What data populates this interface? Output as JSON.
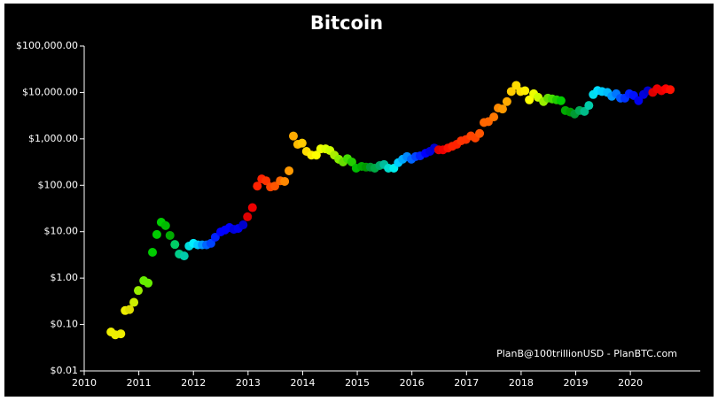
{
  "chart_data": {
    "type": "scatter",
    "title": "Bitcoin",
    "annotation": "PlanB@100trillionUSD - PlanBTC.com",
    "log_y": true,
    "xlim": [
      2010,
      2021.28
    ],
    "xticks": [
      2010,
      2011,
      2012,
      2013,
      2014,
      2015,
      2016,
      2017,
      2018,
      2019,
      2020
    ],
    "ylim": [
      0.01,
      100000
    ],
    "yticks": [
      {
        "value": 0.01,
        "label": "$0.01"
      },
      {
        "value": 0.1,
        "label": "$0.10"
      },
      {
        "value": 1,
        "label": "$1.00"
      },
      {
        "value": 10,
        "label": "$10.00"
      },
      {
        "value": 100,
        "label": "$100.00"
      },
      {
        "value": 1000,
        "label": "$1,000.00"
      },
      {
        "value": 10000,
        "label": "$10,000.00"
      },
      {
        "value": 100000,
        "label": "$100,000.00"
      }
    ],
    "x": [
      2010.49,
      2010.57,
      2010.67,
      2010.75,
      2010.83,
      2010.91,
      2010.99,
      2011.09,
      2011.17,
      2011.25,
      2011.33,
      2011.41,
      2011.49,
      2011.57,
      2011.66,
      2011.74,
      2011.83,
      2011.92,
      2012.0,
      2012.08,
      2012.16,
      2012.24,
      2012.32,
      2012.4,
      2012.5,
      2012.58,
      2012.66,
      2012.74,
      2012.82,
      2012.91,
      2012.99,
      2013.08,
      2013.17,
      2013.25,
      2013.33,
      2013.41,
      2013.49,
      2013.59,
      2013.67,
      2013.75,
      2013.83,
      2013.91,
      2013.99,
      2014.07,
      2014.16,
      2014.25,
      2014.33,
      2014.42,
      2014.5,
      2014.58,
      2014.66,
      2014.74,
      2014.82,
      2014.9,
      2014.98,
      2015.08,
      2015.16,
      2015.24,
      2015.32,
      2015.41,
      2015.49,
      2015.57,
      2015.67,
      2015.75,
      2015.83,
      2015.91,
      2015.99,
      2016.07,
      2016.15,
      2016.25,
      2016.33,
      2016.41,
      2016.49,
      2016.57,
      2016.66,
      2016.74,
      2016.82,
      2016.9,
      2016.99,
      2017.08,
      2017.16,
      2017.24,
      2017.32,
      2017.4,
      2017.5,
      2017.58,
      2017.66,
      2017.74,
      2017.82,
      2017.91,
      2017.99,
      2018.07,
      2018.15,
      2018.23,
      2018.31,
      2018.41,
      2018.49,
      2018.57,
      2018.65,
      2018.73,
      2018.81,
      2018.9,
      2018.98,
      2019.07,
      2019.16,
      2019.24,
      2019.32,
      2019.4,
      2019.48,
      2019.58,
      2019.66,
      2019.74,
      2019.82,
      2019.9,
      2019.98,
      2020.06,
      2020.15,
      2020.24,
      2020.32,
      2020.41,
      2020.49,
      2020.57,
      2020.65,
      2020.73
    ],
    "values": [
      0.069,
      0.06,
      0.063,
      0.2,
      0.21,
      0.3,
      0.54,
      0.88,
      0.78,
      3.6,
      8.7,
      16,
      13.5,
      8.3,
      5.3,
      3.3,
      3.0,
      4.9,
      5.6,
      5.2,
      5.2,
      5.2,
      5.6,
      7.6,
      9.9,
      10.9,
      12.3,
      11.2,
      11.7,
      14,
      20.9,
      33,
      96,
      137,
      125,
      92,
      96,
      125,
      121,
      205,
      1150,
      762,
      810,
      537,
      446,
      446,
      608,
      608,
      560,
      446,
      364,
      318,
      375,
      318,
      233,
      255,
      246,
      246,
      233,
      266,
      280,
      233,
      233,
      307,
      364,
      416,
      364,
      416,
      430,
      490,
      537,
      635,
      580,
      580,
      635,
      693,
      762,
      906,
      968,
      1160,
      1046,
      1308,
      2250,
      2350,
      2960,
      4620,
      4400,
      6360,
      10500,
      14200,
      10500,
      10900,
      6920,
      9380,
      7860,
      6360,
      7550,
      7250,
      6920,
      6640,
      4080,
      3770,
      3440,
      4080,
      3900,
      5240,
      9020,
      11000,
      10500,
      10000,
      8270,
      9380,
      7550,
      7550,
      9380,
      8600,
      6640,
      9020,
      10900,
      10000,
      12000,
      10900,
      12000,
      11500
    ],
    "colors": [
      "#eeee00",
      "#eeee00",
      "#eeee00",
      "#eeee00",
      "#dddd00",
      "#ccee00",
      "#99ee00",
      "#66ee00",
      "#66ee00",
      "#00cc00",
      "#00cc00",
      "#00cc00",
      "#00bb00",
      "#00aa00",
      "#00cc66",
      "#00cc88",
      "#00ccaa",
      "#00dddd",
      "#00eeff",
      "#00ccff",
      "#0099ff",
      "#0066ff",
      "#0044ff",
      "#0022ff",
      "#0000ff",
      "#0000ff",
      "#0000ff",
      "#0000dd",
      "#0000ee",
      "#0000cc",
      "#dd0000",
      "#ee0000",
      "#ff2200",
      "#ff2200",
      "#ff3300",
      "#ff4400",
      "#ff5500",
      "#ff6600",
      "#ff8800",
      "#ff9900",
      "#ffaa00",
      "#ffbb00",
      "#ffcc00",
      "#ffdd00",
      "#ffee00",
      "#ffff00",
      "#eeff00",
      "#ddff00",
      "#ccff00",
      "#aaee00",
      "#88ee00",
      "#66dd00",
      "#44dd00",
      "#22cc00",
      "#00bb00",
      "#00aa00",
      "#009900",
      "#009933",
      "#00aa44",
      "#00aa66",
      "#00bb99",
      "#00ddcc",
      "#00eeee",
      "#00ccff",
      "#00aaff",
      "#0088ff",
      "#0066ff",
      "#0044ff",
      "#0022ff",
      "#0000ff",
      "#0000dd",
      "#0000cc",
      "#dd0000",
      "#ee0000",
      "#ff1100",
      "#ff2200",
      "#ff2200",
      "#ff3300",
      "#ff3300",
      "#ff4400",
      "#ff4400",
      "#ff5500",
      "#ff6600",
      "#ff6600",
      "#ff7700",
      "#ff8800",
      "#ff9900",
      "#ffaa00",
      "#ffcc00",
      "#ffdd00",
      "#ffdd00",
      "#ffee00",
      "#ffff00",
      "#eeff00",
      "#ccff00",
      "#99ee00",
      "#66dd00",
      "#44dd00",
      "#22cc00",
      "#00cc00",
      "#00aa00",
      "#009900",
      "#009933",
      "#00aa55",
      "#00bb88",
      "#00ccaa",
      "#00ddee",
      "#00ddff",
      "#00ccff",
      "#00bbff",
      "#0099ff",
      "#0077ff",
      "#0055ff",
      "#0033ff",
      "#0022ff",
      "#0011ff",
      "#0000ee",
      "#0000dd",
      "#0000cc",
      "#dd0000",
      "#ee0000",
      "#ee0000",
      "#ff0000",
      "#ff1100"
    ]
  }
}
